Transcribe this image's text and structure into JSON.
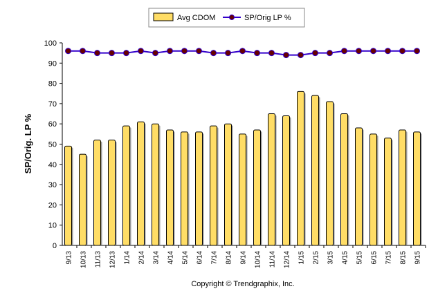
{
  "chart_data": {
    "type": "bar+line",
    "categories": [
      "9/13",
      "10/13",
      "11/13",
      "12/13",
      "1/14",
      "2/14",
      "3/14",
      "4/14",
      "5/14",
      "6/14",
      "7/14",
      "8/14",
      "9/14",
      "10/14",
      "11/14",
      "12/14",
      "1/15",
      "2/15",
      "3/15",
      "4/15",
      "5/15",
      "6/15",
      "7/15",
      "8/15",
      "9/15"
    ],
    "series": [
      {
        "name": "Avg CDOM",
        "type": "bar",
        "color": "#FFDD66",
        "values": [
          49,
          45,
          52,
          52,
          59,
          61,
          60,
          57,
          56,
          56,
          59,
          60,
          55,
          57,
          65,
          64,
          76,
          74,
          71,
          65,
          58,
          55,
          53,
          57,
          56
        ]
      },
      {
        "name": "SP/Orig LP %",
        "type": "line",
        "color": "#3300CC",
        "marker_color": "#660000",
        "values": [
          96,
          96,
          95,
          95,
          95,
          96,
          95,
          96,
          96,
          96,
          95,
          95,
          96,
          95,
          95,
          94,
          94,
          95,
          95,
          96,
          96,
          96,
          96,
          96,
          96
        ]
      }
    ],
    "ylabel": "SP/Orig. LP %",
    "ylim": [
      0,
      100
    ],
    "yticks": [
      0,
      10,
      20,
      30,
      40,
      50,
      60,
      70,
      80,
      90,
      100
    ],
    "grid": false,
    "legend": "top-center"
  },
  "copyright": "Copyright © Trendgraphix, Inc."
}
